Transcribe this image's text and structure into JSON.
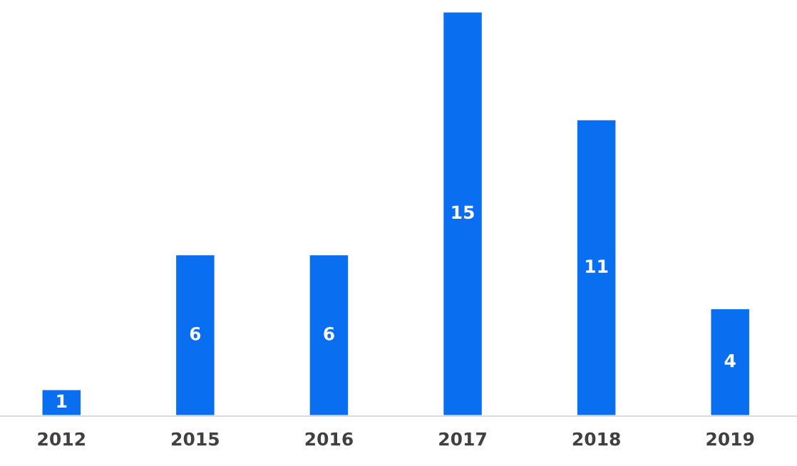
{
  "chart_data": {
    "type": "bar",
    "categories": [
      "2012",
      "2015",
      "2016",
      "2017",
      "2018",
      "2019"
    ],
    "values": [
      1,
      6,
      6,
      15,
      11,
      4
    ],
    "color": "#0a6ef0",
    "data_labels": true,
    "grid": false,
    "legend": false
  }
}
